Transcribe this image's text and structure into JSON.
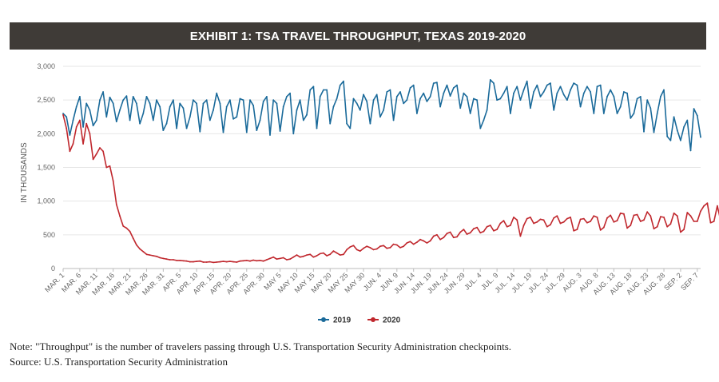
{
  "banner": {
    "title": "EXHIBIT 1: TSA TRAVEL THROUGHPUT, TEXAS 2019-2020"
  },
  "notes": {
    "note": "Note: \"Throughput\" is the number of travelers passing through U.S. Transportation Security Administration checkpoints.",
    "source": "Source: U.S. Transportation Security Administration"
  },
  "chart_data": {
    "type": "line",
    "title": "EXHIBIT 1: TSA TRAVEL THROUGHPUT, TEXAS 2019-2020",
    "xlabel": "",
    "ylabel": "IN THOUSANDS",
    "ylim": [
      0,
      3000
    ],
    "yticks": [
      "0",
      "500",
      "1,000",
      "1,500",
      "2,000",
      "2,500",
      "3,000"
    ],
    "x_tick_labels": [
      "MAR. 1",
      "MAR. 6",
      "MAR. 11",
      "MAR. 16",
      "MAR. 21",
      "MAR. 26",
      "MAR. 31",
      "APR. 5",
      "APR. 10",
      "APR. 15",
      "APR. 20",
      "APR. 25",
      "APR. 30",
      "MAY 5",
      "MAY 10",
      "MAY 15",
      "MAY 20",
      "MAY 25",
      "MAY 30",
      "JUN. 4",
      "JUN. 9",
      "JUN. 14",
      "JUN. 19",
      "JUN. 24",
      "JUN. 29",
      "JUL. 4",
      "JUL. 9",
      "JUL. 14",
      "JUL. 19",
      "JUL. 24",
      "JUL. 29",
      "AUG. 3",
      "AUG. 8",
      "AUG. 13",
      "AUG. 18",
      "AUG. 23",
      "AUG. 28",
      "SEP. 2",
      "SEP. 7"
    ],
    "grid": true,
    "legend": "bottom-center",
    "series": [
      {
        "name": "2019",
        "color": "#1a6a9a",
        "values": [
          2300,
          2250,
          1980,
          2200,
          2400,
          2550,
          2100,
          2450,
          2350,
          2120,
          2200,
          2500,
          2620,
          2250,
          2540,
          2450,
          2180,
          2350,
          2500,
          2560,
          2200,
          2550,
          2450,
          2150,
          2300,
          2550,
          2450,
          2200,
          2500,
          2400,
          2050,
          2150,
          2400,
          2500,
          2080,
          2450,
          2380,
          2080,
          2250,
          2500,
          2450,
          2030,
          2450,
          2500,
          2200,
          2350,
          2600,
          2450,
          2020,
          2400,
          2500,
          2220,
          2250,
          2520,
          2500,
          2020,
          2500,
          2420,
          2050,
          2200,
          2480,
          2550,
          1980,
          2500,
          2450,
          2040,
          2400,
          2550,
          2600,
          2000,
          2350,
          2500,
          2200,
          2280,
          2650,
          2700,
          2080,
          2550,
          2650,
          2650,
          2150,
          2400,
          2520,
          2720,
          2780,
          2150,
          2080,
          2520,
          2450,
          2350,
          2580,
          2480,
          2150,
          2500,
          2580,
          2250,
          2350,
          2620,
          2650,
          2200,
          2550,
          2620,
          2450,
          2500,
          2680,
          2720,
          2300,
          2520,
          2600,
          2480,
          2550,
          2750,
          2760,
          2400,
          2600,
          2720,
          2560,
          2680,
          2720,
          2380,
          2600,
          2550,
          2300,
          2520,
          2500,
          2080,
          2200,
          2350,
          2800,
          2750,
          2500,
          2520,
          2600,
          2700,
          2300,
          2600,
          2700,
          2500,
          2650,
          2780,
          2380,
          2620,
          2720,
          2550,
          2620,
          2720,
          2750,
          2350,
          2600,
          2700,
          2580,
          2500,
          2650,
          2750,
          2720,
          2400,
          2600,
          2700,
          2620,
          2300,
          2700,
          2720,
          2300,
          2550,
          2650,
          2550,
          2300,
          2400,
          2620,
          2600,
          2230,
          2300,
          2520,
          2550,
          2030,
          2500,
          2380,
          2020,
          2300,
          2550,
          2650,
          1960,
          1900,
          2250,
          2050,
          1900,
          2100,
          2200,
          1750,
          2370,
          2270,
          1950
        ]
      },
      {
        "name": "2020",
        "color": "#c0272d",
        "values": [
          2280,
          2080,
          1740,
          1850,
          2100,
          2200,
          1850,
          2150,
          2000,
          1620,
          1700,
          1790,
          1740,
          1500,
          1520,
          1300,
          950,
          780,
          630,
          600,
          550,
          450,
          350,
          290,
          250,
          210,
          200,
          190,
          180,
          160,
          150,
          140,
          130,
          130,
          120,
          120,
          115,
          110,
          100,
          100,
          105,
          110,
          95,
          95,
          100,
          90,
          95,
          100,
          105,
          100,
          105,
          100,
          95,
          110,
          115,
          120,
          110,
          125,
          115,
          120,
          110,
          130,
          150,
          170,
          140,
          150,
          160,
          130,
          140,
          170,
          200,
          170,
          180,
          200,
          210,
          170,
          190,
          220,
          230,
          190,
          210,
          260,
          230,
          200,
          210,
          280,
          320,
          340,
          280,
          260,
          300,
          330,
          310,
          280,
          290,
          330,
          340,
          300,
          310,
          360,
          350,
          310,
          330,
          380,
          400,
          360,
          390,
          430,
          410,
          380,
          410,
          480,
          500,
          430,
          460,
          520,
          540,
          460,
          470,
          540,
          580,
          510,
          530,
          590,
          610,
          530,
          550,
          620,
          640,
          560,
          580,
          670,
          710,
          620,
          640,
          760,
          720,
          480,
          640,
          740,
          760,
          670,
          690,
          730,
          720,
          620,
          650,
          750,
          780,
          670,
          690,
          740,
          760,
          560,
          580,
          730,
          740,
          680,
          700,
          780,
          760,
          570,
          610,
          750,
          790,
          690,
          710,
          820,
          810,
          600,
          640,
          790,
          800,
          700,
          720,
          840,
          780,
          590,
          620,
          770,
          760,
          620,
          660,
          820,
          780,
          540,
          580,
          830,
          780,
          700,
          700,
          850,
          930,
          970,
          680,
          700,
          930,
          710
        ]
      }
    ]
  }
}
